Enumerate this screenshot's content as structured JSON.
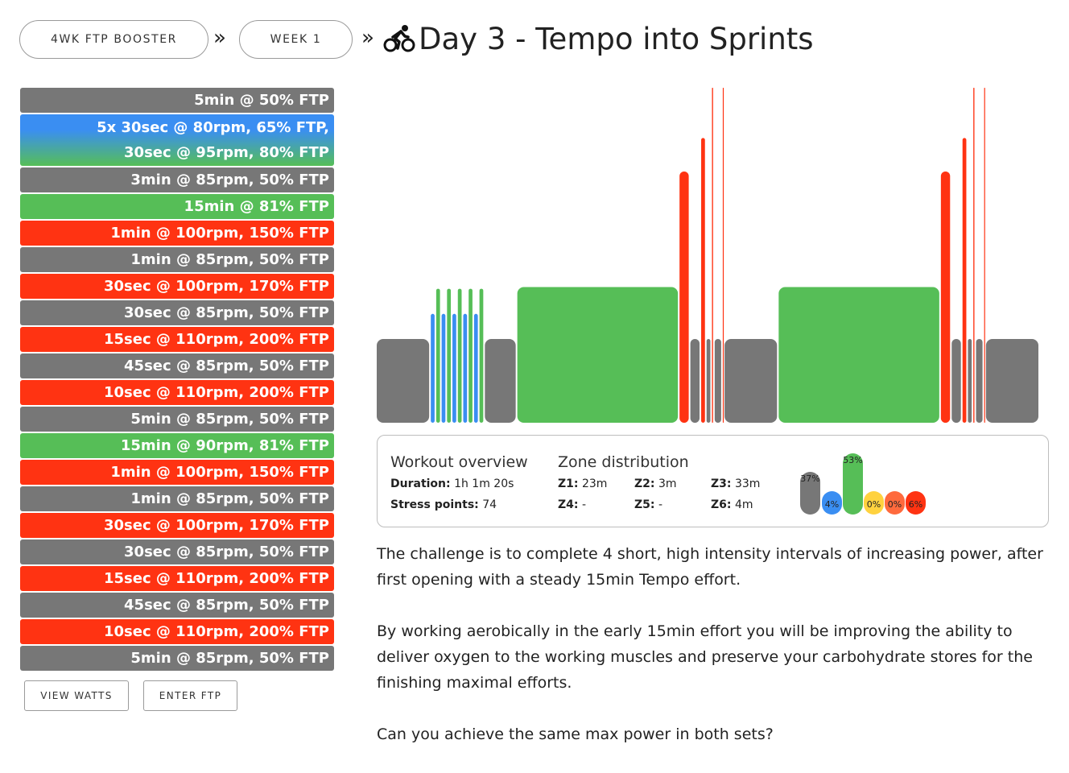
{
  "breadcrumb": {
    "plan_label": "4WK FTP BOOSTER",
    "week_label": "WEEK 1",
    "separator": "»"
  },
  "title": {
    "icon": "cyclist-icon",
    "text": "Day 3 - Tempo into Sprints"
  },
  "intervals": [
    {
      "lines": [
        "5min @ 50% FTP"
      ],
      "zone": "gray"
    },
    {
      "lines": [
        "5x 30sec @ 80rpm, 65% FTP,",
        "30sec @ 95rpm, 80% FTP"
      ],
      "zone": "mix"
    },
    {
      "lines": [
        "3min @ 85rpm, 50% FTP"
      ],
      "zone": "gray"
    },
    {
      "lines": [
        "15min @ 81% FTP"
      ],
      "zone": "green"
    },
    {
      "lines": [
        "1min @ 100rpm, 150% FTP"
      ],
      "zone": "red"
    },
    {
      "lines": [
        "1min @ 85rpm, 50% FTP"
      ],
      "zone": "gray"
    },
    {
      "lines": [
        "30sec @ 100rpm, 170% FTP"
      ],
      "zone": "red"
    },
    {
      "lines": [
        "30sec @ 85rpm, 50% FTP"
      ],
      "zone": "gray"
    },
    {
      "lines": [
        "15sec @ 110rpm, 200% FTP"
      ],
      "zone": "red"
    },
    {
      "lines": [
        "45sec @ 85rpm, 50% FTP"
      ],
      "zone": "gray"
    },
    {
      "lines": [
        "10sec @ 110rpm, 200% FTP"
      ],
      "zone": "red"
    },
    {
      "lines": [
        "5min @ 85rpm, 50% FTP"
      ],
      "zone": "gray"
    },
    {
      "lines": [
        "15min @ 90rpm, 81% FTP"
      ],
      "zone": "green"
    },
    {
      "lines": [
        "1min @ 100rpm, 150% FTP"
      ],
      "zone": "red"
    },
    {
      "lines": [
        "1min @ 85rpm, 50% FTP"
      ],
      "zone": "gray"
    },
    {
      "lines": [
        "30sec @ 100rpm, 170% FTP"
      ],
      "zone": "red"
    },
    {
      "lines": [
        "30sec @ 85rpm, 50% FTP"
      ],
      "zone": "gray"
    },
    {
      "lines": [
        "15sec @ 110rpm, 200% FTP"
      ],
      "zone": "red"
    },
    {
      "lines": [
        "45sec @ 85rpm, 50% FTP"
      ],
      "zone": "gray"
    },
    {
      "lines": [
        "10sec @ 110rpm, 200% FTP"
      ],
      "zone": "red"
    },
    {
      "lines": [
        "5min @ 85rpm, 50% FTP"
      ],
      "zone": "gray"
    }
  ],
  "buttons": {
    "view_watts": "VIEW WATTS",
    "enter_ftp": "ENTER FTP"
  },
  "colors": {
    "gray": "#777777",
    "green": "#56be57",
    "red": "#ff3312",
    "blue": "#3a8ef2",
    "yellow": "#ffd23f",
    "orange": "#ff6a3d"
  },
  "chart_data": {
    "type": "bar",
    "x_unit": "seconds",
    "y_unit": "% FTP",
    "segments": [
      {
        "duration": 300,
        "power": 50,
        "zone": "gray"
      },
      {
        "duration": 30,
        "power": 65,
        "zone": "blue"
      },
      {
        "duration": 30,
        "power": 80,
        "zone": "green"
      },
      {
        "duration": 30,
        "power": 65,
        "zone": "blue"
      },
      {
        "duration": 30,
        "power": 80,
        "zone": "green"
      },
      {
        "duration": 30,
        "power": 65,
        "zone": "blue"
      },
      {
        "duration": 30,
        "power": 80,
        "zone": "green"
      },
      {
        "duration": 30,
        "power": 65,
        "zone": "blue"
      },
      {
        "duration": 30,
        "power": 80,
        "zone": "green"
      },
      {
        "duration": 30,
        "power": 65,
        "zone": "blue"
      },
      {
        "duration": 30,
        "power": 80,
        "zone": "green"
      },
      {
        "duration": 180,
        "power": 50,
        "zone": "gray"
      },
      {
        "duration": 900,
        "power": 81,
        "zone": "green"
      },
      {
        "duration": 60,
        "power": 150,
        "zone": "red"
      },
      {
        "duration": 60,
        "power": 50,
        "zone": "gray"
      },
      {
        "duration": 30,
        "power": 170,
        "zone": "red"
      },
      {
        "duration": 30,
        "power": 50,
        "zone": "gray"
      },
      {
        "duration": 15,
        "power": 200,
        "zone": "red"
      },
      {
        "duration": 45,
        "power": 50,
        "zone": "gray"
      },
      {
        "duration": 10,
        "power": 200,
        "zone": "red"
      },
      {
        "duration": 300,
        "power": 50,
        "zone": "gray"
      },
      {
        "duration": 900,
        "power": 81,
        "zone": "green"
      },
      {
        "duration": 60,
        "power": 150,
        "zone": "red"
      },
      {
        "duration": 60,
        "power": 50,
        "zone": "gray"
      },
      {
        "duration": 30,
        "power": 170,
        "zone": "red"
      },
      {
        "duration": 30,
        "power": 50,
        "zone": "gray"
      },
      {
        "duration": 15,
        "power": 200,
        "zone": "red"
      },
      {
        "duration": 45,
        "power": 50,
        "zone": "gray"
      },
      {
        "duration": 10,
        "power": 200,
        "zone": "red"
      },
      {
        "duration": 300,
        "power": 50,
        "zone": "gray"
      }
    ]
  },
  "overview": {
    "heading": "Workout overview",
    "duration_label": "Duration:",
    "duration_value": "1h 1m 20s",
    "stress_label": "Stress points:",
    "stress_value": "74"
  },
  "zones": {
    "heading": "Zone distribution",
    "items": [
      {
        "label": "Z1:",
        "value": "23m"
      },
      {
        "label": "Z2:",
        "value": "3m"
      },
      {
        "label": "Z3:",
        "value": "33m"
      },
      {
        "label": "Z4:",
        "value": "-"
      },
      {
        "label": "Z5:",
        "value": "-"
      },
      {
        "label": "Z6:",
        "value": "4m"
      }
    ],
    "bars": [
      {
        "pct": "37%",
        "value": 37,
        "color": "#777777"
      },
      {
        "pct": "4%",
        "value": 4,
        "color": "#3a8ef2"
      },
      {
        "pct": "53%",
        "value": 53,
        "color": "#56be57"
      },
      {
        "pct": "0%",
        "value": 0,
        "color": "#ffd23f"
      },
      {
        "pct": "0%",
        "value": 0,
        "color": "#ff6a3d"
      },
      {
        "pct": "6%",
        "value": 6,
        "color": "#ff3312"
      }
    ]
  },
  "description": [
    "The challenge is to complete 4 short, high intensity intervals of increasing power, after first opening with a steady 15min Tempo effort.",
    "By working aerobically in the early 15min effort you will be improving the ability to deliver oxygen to the working muscles and preserve your carbohydrate stores for the finishing maximal efforts.",
    "Can you achieve the same max power in both sets?"
  ]
}
